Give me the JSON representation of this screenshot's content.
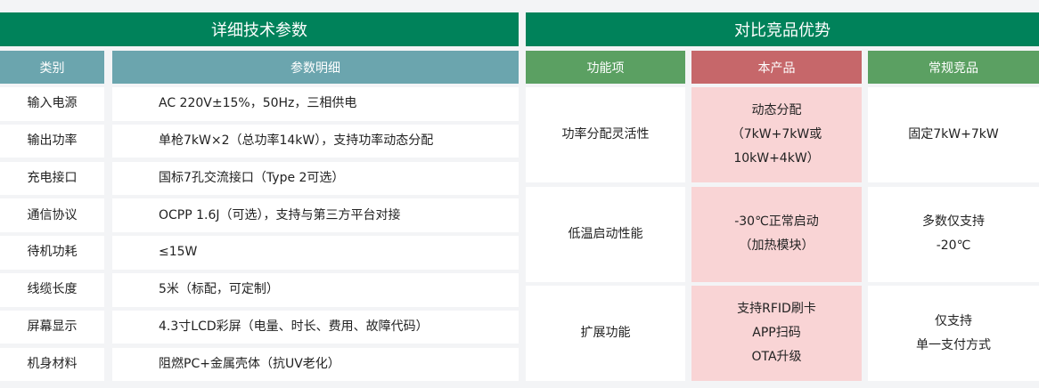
{
  "colors": {
    "title": "#00825a",
    "spec_header": "#6ba5ae",
    "compare_header": "#5ba062",
    "product_header": "#c6676a",
    "product_cell": "#f9d4d5"
  },
  "specs": {
    "title": "详细技术参数",
    "headers": [
      "类别",
      "参数明细"
    ],
    "rows": [
      [
        "输入电源",
        "AC 220V±15%，50Hz，三相供电"
      ],
      [
        "输出功率",
        "单枪7kW×2（总功率14kW），支持功率动态分配"
      ],
      [
        "充电接口",
        "国标7孔交流接口（Type 2可选）"
      ],
      [
        "通信协议",
        "OCPP 1.6J（可选），支持与第三方平台对接"
      ],
      [
        "待机功耗",
        "≤15W"
      ],
      [
        "线缆长度",
        "5米（标配，可定制）"
      ],
      [
        "屏幕显示",
        "4.3寸LCD彩屏（电量、时长、费用、故障代码）"
      ],
      [
        "机身材料",
        "阻燃PC+金属壳体（抗UV老化）"
      ]
    ]
  },
  "compare": {
    "title": "对比竞品优势",
    "headers": [
      "功能项",
      "本产品",
      "常规竞品"
    ],
    "rows": [
      {
        "feature": "功率分配灵活性",
        "product": [
          "动态分配",
          "（7kW+7kW或",
          "10kW+4kW）"
        ],
        "competitor": [
          "固定7kW+7kW"
        ]
      },
      {
        "feature": "低温启动性能",
        "product": [
          "-30℃正常启动",
          "（加热模块）"
        ],
        "competitor": [
          "多数仅支持",
          "-20℃"
        ]
      },
      {
        "feature": "扩展功能",
        "product": [
          "支持RFID刷卡",
          "APP扫码",
          "OTA升级"
        ],
        "competitor": [
          "仅支持",
          "单一支付方式"
        ]
      }
    ]
  }
}
